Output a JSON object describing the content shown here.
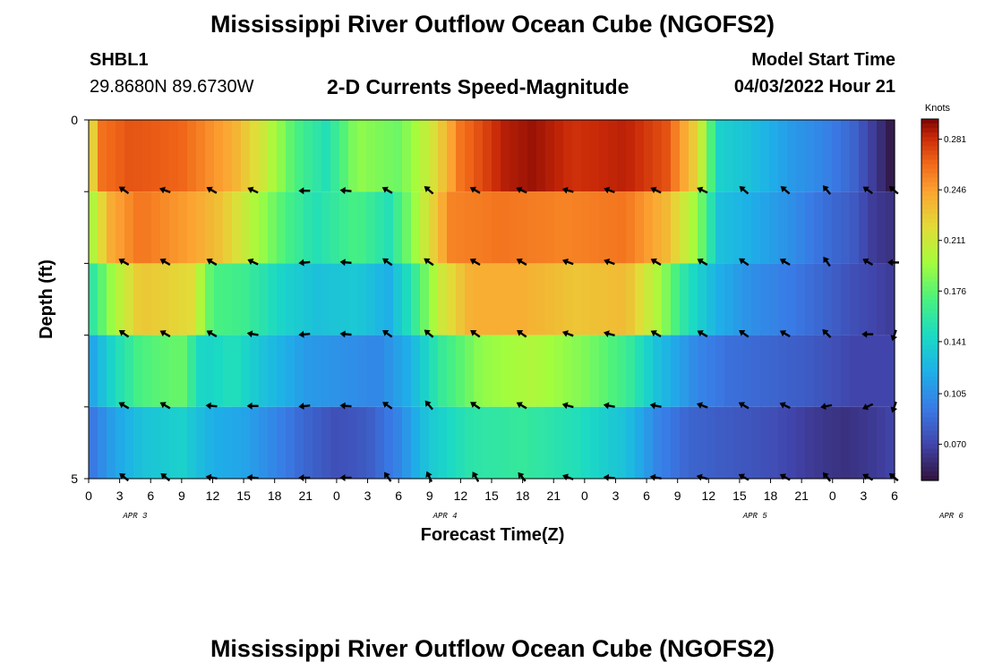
{
  "header": {
    "title": "Mississippi River Outflow Ocean Cube (NGOFS2)",
    "station_id": "SHBL1",
    "coordinates": "29.8680N  89.6730W",
    "subtitle": "2-D Currents Speed-Magnitude",
    "model_start_label": "Model Start Time",
    "model_start_value": "04/03/2022 Hour 21"
  },
  "footer": {
    "title": "Mississippi River Outflow Ocean Cube (NGOFS2)"
  },
  "chart_data": {
    "type": "heatmap",
    "xlabel": "Forecast Time(Z)",
    "ylabel": "Depth (ft)",
    "y_ticks": [
      "0",
      "5"
    ],
    "ylim": [
      0,
      5
    ],
    "x_ticks": [
      "0",
      "3",
      "6",
      "9",
      "12",
      "15",
      "18",
      "21",
      "0",
      "3",
      "6",
      "9",
      "12",
      "15",
      "18",
      "21",
      "0",
      "3",
      "6",
      "9",
      "12",
      "15",
      "18",
      "21",
      "0",
      "3",
      "6"
    ],
    "date_labels": [
      {
        "label": "APR 3",
        "at_hour": 4.5
      },
      {
        "label": "APR 4",
        "at_hour": 34.5
      },
      {
        "label": "APR 5",
        "at_hour": 64.5
      },
      {
        "label": "APR 6",
        "at_hour": 83.5
      }
    ],
    "x_range_hours": [
      0,
      78
    ],
    "colorbar": {
      "unit": "Knots",
      "ticks": [
        "0.281",
        "0.246",
        "0.211",
        "0.176",
        "0.141",
        "0.105",
        "0.070"
      ],
      "range": [
        0.045,
        0.295
      ]
    },
    "depth_bands": [
      0,
      1,
      2,
      3,
      4,
      5
    ],
    "speed_profiles": [
      [
        [
          0,
          0.2
        ],
        [
          1,
          0.26
        ],
        [
          4,
          0.27
        ],
        [
          9,
          0.265
        ],
        [
          14,
          0.24
        ],
        [
          17,
          0.21
        ],
        [
          20,
          0.17
        ],
        [
          23,
          0.15
        ],
        [
          26,
          0.19
        ],
        [
          30,
          0.18
        ],
        [
          33,
          0.21
        ],
        [
          36,
          0.26
        ],
        [
          40,
          0.285
        ],
        [
          43,
          0.29
        ],
        [
          47,
          0.28
        ],
        [
          52,
          0.285
        ],
        [
          56,
          0.27
        ],
        [
          59,
          0.22
        ],
        [
          61,
          0.14
        ],
        [
          64,
          0.13
        ],
        [
          68,
          0.11
        ],
        [
          71,
          0.1
        ],
        [
          74,
          0.085
        ],
        [
          76,
          0.065
        ],
        [
          78,
          0.045
        ]
      ],
      [
        [
          0,
          0.19
        ],
        [
          2,
          0.24
        ],
        [
          5,
          0.26
        ],
        [
          10,
          0.245
        ],
        [
          13,
          0.23
        ],
        [
          16,
          0.2
        ],
        [
          19,
          0.17
        ],
        [
          22,
          0.15
        ],
        [
          26,
          0.17
        ],
        [
          29,
          0.15
        ],
        [
          32,
          0.2
        ],
        [
          35,
          0.255
        ],
        [
          40,
          0.26
        ],
        [
          46,
          0.255
        ],
        [
          52,
          0.26
        ],
        [
          56,
          0.235
        ],
        [
          59,
          0.19
        ],
        [
          61,
          0.13
        ],
        [
          64,
          0.12
        ],
        [
          68,
          0.105
        ],
        [
          71,
          0.09
        ],
        [
          74,
          0.08
        ],
        [
          76,
          0.065
        ],
        [
          78,
          0.06
        ]
      ],
      [
        [
          0,
          0.15
        ],
        [
          2,
          0.19
        ],
        [
          5,
          0.23
        ],
        [
          10,
          0.22
        ],
        [
          12,
          0.17
        ],
        [
          15,
          0.165
        ],
        [
          19,
          0.14
        ],
        [
          22,
          0.13
        ],
        [
          26,
          0.135
        ],
        [
          29,
          0.12
        ],
        [
          31,
          0.15
        ],
        [
          34,
          0.21
        ],
        [
          37,
          0.24
        ],
        [
          42,
          0.24
        ],
        [
          47,
          0.23
        ],
        [
          52,
          0.235
        ],
        [
          55,
          0.2
        ],
        [
          58,
          0.15
        ],
        [
          61,
          0.12
        ],
        [
          64,
          0.105
        ],
        [
          68,
          0.095
        ],
        [
          71,
          0.085
        ],
        [
          74,
          0.075
        ],
        [
          76,
          0.07
        ],
        [
          78,
          0.065
        ]
      ],
      [
        [
          0,
          0.11
        ],
        [
          2,
          0.14
        ],
        [
          5,
          0.17
        ],
        [
          9,
          0.18
        ],
        [
          11,
          0.14
        ],
        [
          14,
          0.15
        ],
        [
          17,
          0.13
        ],
        [
          21,
          0.11
        ],
        [
          25,
          0.105
        ],
        [
          28,
          0.1
        ],
        [
          31,
          0.12
        ],
        [
          34,
          0.16
        ],
        [
          38,
          0.19
        ],
        [
          43,
          0.2
        ],
        [
          48,
          0.185
        ],
        [
          52,
          0.165
        ],
        [
          55,
          0.13
        ],
        [
          59,
          0.1
        ],
        [
          62,
          0.09
        ],
        [
          66,
          0.085
        ],
        [
          70,
          0.08
        ],
        [
          74,
          0.07
        ],
        [
          76,
          0.07
        ],
        [
          78,
          0.07
        ]
      ],
      [
        [
          0,
          0.09
        ],
        [
          2,
          0.11
        ],
        [
          5,
          0.13
        ],
        [
          9,
          0.14
        ],
        [
          12,
          0.12
        ],
        [
          15,
          0.115
        ],
        [
          18,
          0.1
        ],
        [
          21,
          0.085
        ],
        [
          24,
          0.075
        ],
        [
          27,
          0.08
        ],
        [
          30,
          0.1
        ],
        [
          33,
          0.135
        ],
        [
          37,
          0.155
        ],
        [
          42,
          0.16
        ],
        [
          47,
          0.15
        ],
        [
          52,
          0.13
        ],
        [
          55,
          0.1
        ],
        [
          58,
          0.085
        ],
        [
          62,
          0.08
        ],
        [
          66,
          0.075
        ],
        [
          70,
          0.065
        ],
        [
          73,
          0.06
        ],
        [
          76,
          0.065
        ],
        [
          78,
          0.07
        ]
      ]
    ],
    "vector_hours": [
      3.5,
      7.5,
      12,
      16,
      21,
      25,
      29,
      33,
      37.5,
      42,
      46.5,
      50.5,
      55,
      59.5,
      63.5,
      67.5,
      71.5,
      75.5,
      78
    ],
    "vector_rows": [
      {
        "depth": 1,
        "angles": [
          145,
          160,
          150,
          155,
          180,
          175,
          150,
          140,
          150,
          155,
          165,
          160,
          155,
          155,
          140,
          140,
          130,
          145,
          140
        ]
      },
      {
        "depth": 2,
        "angles": [
          150,
          150,
          150,
          155,
          185,
          175,
          145,
          145,
          150,
          150,
          160,
          160,
          150,
          150,
          145,
          150,
          125,
          150,
          180
        ]
      },
      {
        "depth": 3,
        "angles": [
          145,
          150,
          150,
          170,
          185,
          175,
          145,
          140,
          145,
          145,
          160,
          165,
          150,
          150,
          145,
          150,
          135,
          180,
          250
        ]
      },
      {
        "depth": 4,
        "angles": [
          150,
          150,
          175,
          180,
          185,
          175,
          145,
          130,
          145,
          150,
          165,
          170,
          170,
          160,
          150,
          155,
          190,
          205,
          250
        ]
      },
      {
        "depth": 5,
        "angles": [
          140,
          140,
          170,
          175,
          180,
          180,
          125,
          115,
          120,
          130,
          160,
          175,
          170,
          165,
          150,
          150,
          130,
          150,
          140
        ]
      }
    ]
  }
}
